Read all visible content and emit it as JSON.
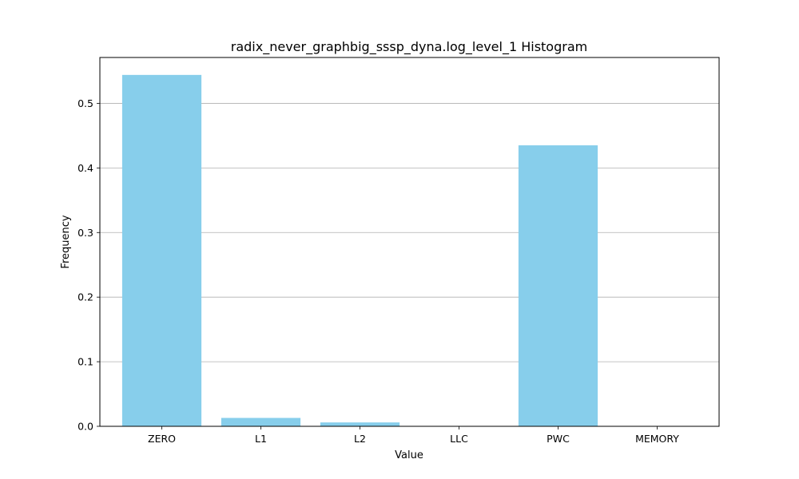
{
  "chart_data": {
    "type": "bar",
    "title": "radix_never_graphbig_sssp_dyna.log_level_1 Histogram",
    "xlabel": "Value",
    "ylabel": "Frequency",
    "categories": [
      "ZERO",
      "L1",
      "L2",
      "LLC",
      "PWC",
      "MEMORY"
    ],
    "values": [
      0.544,
      0.013,
      0.006,
      0.0,
      0.435,
      0.0
    ],
    "ylim": [
      0,
      0.571
    ],
    "yticks": [
      0.0,
      0.1,
      0.2,
      0.3,
      0.4,
      0.5
    ],
    "ytick_labels": [
      "0.0",
      "0.1",
      "0.2",
      "0.3",
      "0.4",
      "0.5"
    ],
    "grid": "horizontal",
    "bar_color": "#87ceeb"
  }
}
